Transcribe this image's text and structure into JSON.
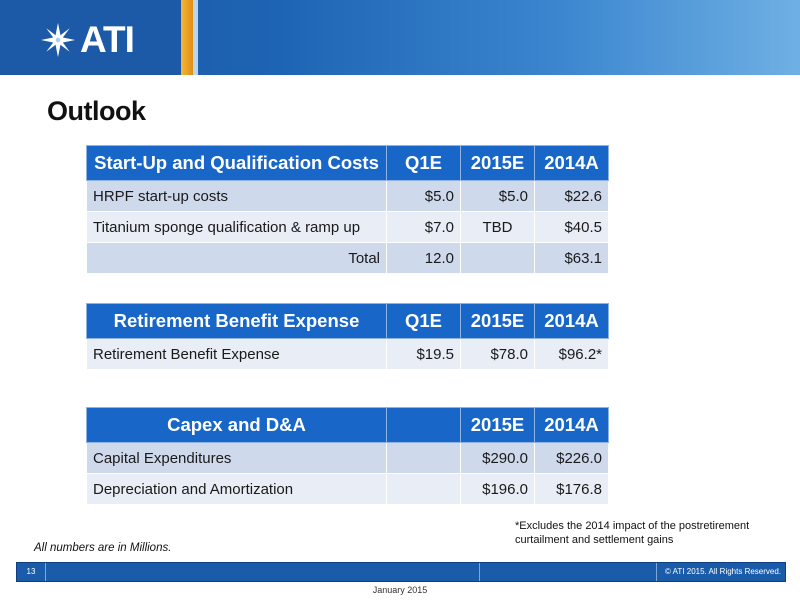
{
  "header": {
    "logo_text": "ATI",
    "colors": {
      "banner": "#1c5aa8",
      "gold": "#f6b733",
      "table_header": "#1766c8"
    }
  },
  "page_title": "Outlook",
  "startup_table": {
    "headers": [
      "Start-Up and Qualification Costs",
      "Q1E",
      "2015E",
      "2014A"
    ],
    "rows": [
      [
        "HRPF start-up costs",
        "$5.0",
        "$5.0",
        "$22.6"
      ],
      [
        "Titanium sponge qualification & ramp up",
        "$7.0",
        "TBD",
        "$40.5"
      ],
      [
        "Total",
        "12.0",
        "",
        "$63.1"
      ]
    ]
  },
  "retirement_table": {
    "headers": [
      "Retirement Benefit Expense",
      "Q1E",
      "2015E",
      "2014A"
    ],
    "rows": [
      [
        "Retirement Benefit Expense",
        "$19.5",
        "$78.0",
        "$96.2*"
      ]
    ]
  },
  "capex_table": {
    "headers": [
      "Capex and D&A",
      "",
      "2015E",
      "2014A"
    ],
    "rows": [
      [
        "Capital Expenditures",
        "",
        "$290.0",
        "$226.0"
      ],
      [
        "Depreciation and Amortization",
        "",
        "$196.0",
        "$176.8"
      ]
    ]
  },
  "notes": {
    "footnote_line1": "*Excludes the 2014 impact of the postretirement",
    "footnote_line2": "curtailment and settlement gains",
    "millions": "All numbers are in Millions."
  },
  "footer": {
    "page_number": "13",
    "copyright": "© ATI 2015. All Rights Reserved.",
    "date": "January 2015"
  }
}
